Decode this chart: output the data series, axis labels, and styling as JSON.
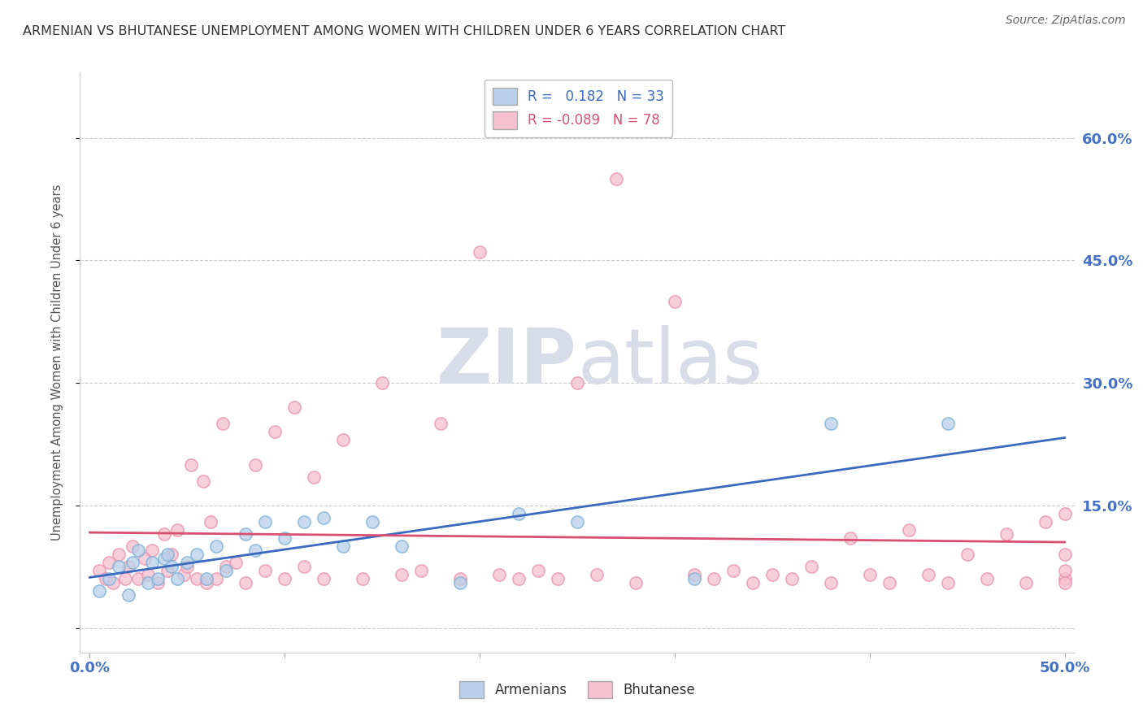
{
  "title": "ARMENIAN VS BHUTANESE UNEMPLOYMENT AMONG WOMEN WITH CHILDREN UNDER 6 YEARS CORRELATION CHART",
  "source": "Source: ZipAtlas.com",
  "ylabel": "Unemployment Among Women with Children Under 6 years",
  "xlim": [
    -0.005,
    0.505
  ],
  "ylim": [
    -0.03,
    0.68
  ],
  "ytick_positions": [
    0.0,
    0.15,
    0.3,
    0.45,
    0.6
  ],
  "ytick_labels": [
    "",
    "15.0%",
    "30.0%",
    "45.0%",
    "60.0%"
  ],
  "xtick_positions": [
    0.0,
    0.1,
    0.2,
    0.3,
    0.4,
    0.5
  ],
  "xtick_labels": [
    "0.0%",
    "",
    "",
    "",
    "",
    "50.0%"
  ],
  "armenian_R": "0.182",
  "armenian_N": "33",
  "bhutanese_R": "-0.089",
  "bhutanese_N": "78",
  "armenian_fill": "#b8d0ea",
  "armenian_edge": "#7aaed4",
  "bhutanese_fill": "#f5c0d0",
  "bhutanese_edge": "#e890aa",
  "armenian_line_color": "#3a6abf",
  "bhutanese_line_color": "#d94f72",
  "legend_armenian": "Armenians",
  "legend_bhutanese": "Bhutanese",
  "legend_fill_arm": "#b8d0ea",
  "legend_fill_bhu": "#f5c0d0",
  "grid_color": "#cccccc",
  "watermark_color": "#d8dce8",
  "armenian_x": [
    0.005,
    0.01,
    0.015,
    0.02,
    0.022,
    0.025,
    0.03,
    0.032,
    0.035,
    0.038,
    0.04,
    0.042,
    0.045,
    0.05,
    0.055,
    0.06,
    0.065,
    0.07,
    0.08,
    0.085,
    0.09,
    0.1,
    0.11,
    0.12,
    0.13,
    0.145,
    0.16,
    0.19,
    0.22,
    0.25,
    0.31,
    0.38,
    0.44
  ],
  "armenian_y": [
    0.045,
    0.06,
    0.075,
    0.04,
    0.08,
    0.095,
    0.055,
    0.08,
    0.06,
    0.085,
    0.09,
    0.075,
    0.06,
    0.08,
    0.09,
    0.06,
    0.1,
    0.07,
    0.115,
    0.095,
    0.13,
    0.11,
    0.13,
    0.135,
    0.1,
    0.13,
    0.1,
    0.055,
    0.14,
    0.13,
    0.06,
    0.25,
    0.25
  ],
  "bhutanese_x": [
    0.005,
    0.008,
    0.01,
    0.012,
    0.015,
    0.018,
    0.02,
    0.022,
    0.025,
    0.028,
    0.03,
    0.032,
    0.035,
    0.038,
    0.04,
    0.042,
    0.045,
    0.048,
    0.05,
    0.052,
    0.055,
    0.058,
    0.06,
    0.062,
    0.065,
    0.068,
    0.07,
    0.075,
    0.08,
    0.085,
    0.09,
    0.095,
    0.1,
    0.105,
    0.11,
    0.115,
    0.12,
    0.13,
    0.14,
    0.15,
    0.16,
    0.17,
    0.18,
    0.19,
    0.2,
    0.21,
    0.22,
    0.23,
    0.24,
    0.25,
    0.26,
    0.27,
    0.28,
    0.3,
    0.31,
    0.32,
    0.33,
    0.34,
    0.35,
    0.36,
    0.37,
    0.38,
    0.39,
    0.4,
    0.41,
    0.42,
    0.43,
    0.44,
    0.45,
    0.46,
    0.47,
    0.48,
    0.49,
    0.5,
    0.5,
    0.5,
    0.5,
    0.5
  ],
  "bhutanese_y": [
    0.07,
    0.06,
    0.08,
    0.055,
    0.09,
    0.06,
    0.075,
    0.1,
    0.06,
    0.085,
    0.065,
    0.095,
    0.055,
    0.115,
    0.07,
    0.09,
    0.12,
    0.065,
    0.075,
    0.2,
    0.06,
    0.18,
    0.055,
    0.13,
    0.06,
    0.25,
    0.075,
    0.08,
    0.055,
    0.2,
    0.07,
    0.24,
    0.06,
    0.27,
    0.075,
    0.185,
    0.06,
    0.23,
    0.06,
    0.3,
    0.065,
    0.07,
    0.25,
    0.06,
    0.46,
    0.065,
    0.06,
    0.07,
    0.06,
    0.3,
    0.065,
    0.55,
    0.055,
    0.4,
    0.065,
    0.06,
    0.07,
    0.055,
    0.065,
    0.06,
    0.075,
    0.055,
    0.11,
    0.065,
    0.055,
    0.12,
    0.065,
    0.055,
    0.09,
    0.06,
    0.115,
    0.055,
    0.13,
    0.06,
    0.07,
    0.055,
    0.09,
    0.14
  ]
}
